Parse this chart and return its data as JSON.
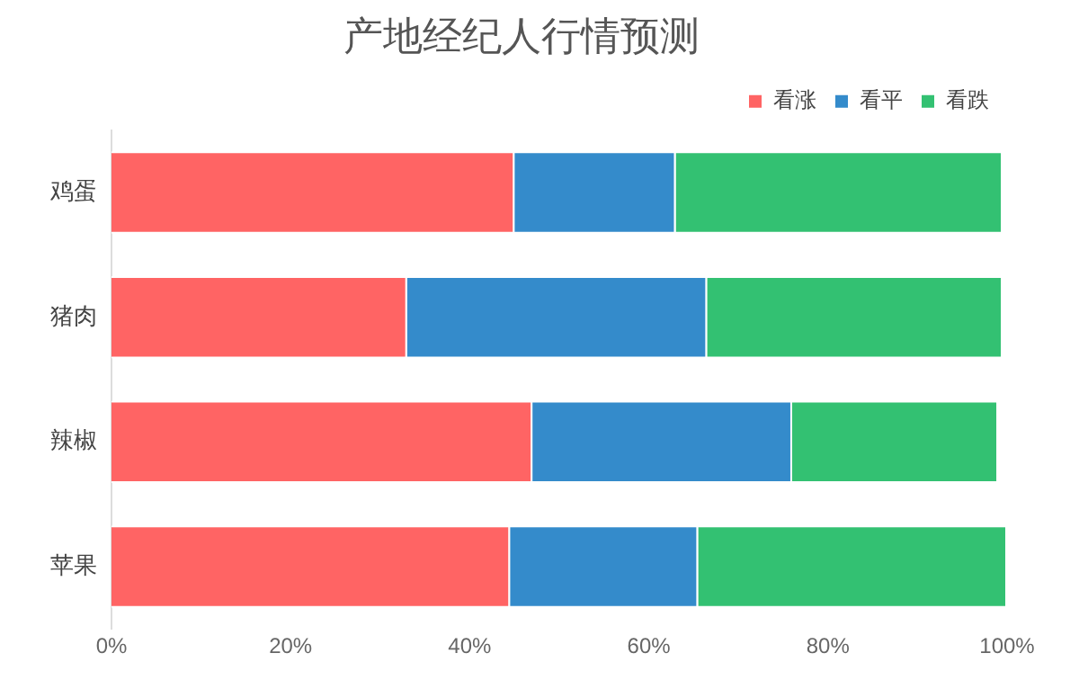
{
  "chart_data": {
    "type": "bar",
    "title": "产地经纪人行情预测",
    "orientation": "horizontal",
    "stacked": true,
    "categories": [
      "鸡蛋",
      "猪肉",
      "辣椒",
      "苹果"
    ],
    "series": [
      {
        "name": "看涨",
        "color": "#ff6464",
        "values": [
          45,
          33,
          47,
          44.5
        ]
      },
      {
        "name": "看平",
        "color": "#348bcb",
        "values": [
          18,
          33.5,
          29,
          21
        ]
      },
      {
        "name": "看跌",
        "color": "#33c172",
        "values": [
          36.5,
          33,
          23,
          34.5
        ]
      }
    ],
    "xlim": [
      0,
      100
    ],
    "xticks": [
      {
        "value": 0,
        "label": "0%"
      },
      {
        "value": 20,
        "label": "20%"
      },
      {
        "value": 40,
        "label": "40%"
      },
      {
        "value": 60,
        "label": "60%"
      },
      {
        "value": 80,
        "label": "80%"
      },
      {
        "value": 100,
        "label": "100%"
      }
    ],
    "grid": false,
    "legend": "top right"
  }
}
